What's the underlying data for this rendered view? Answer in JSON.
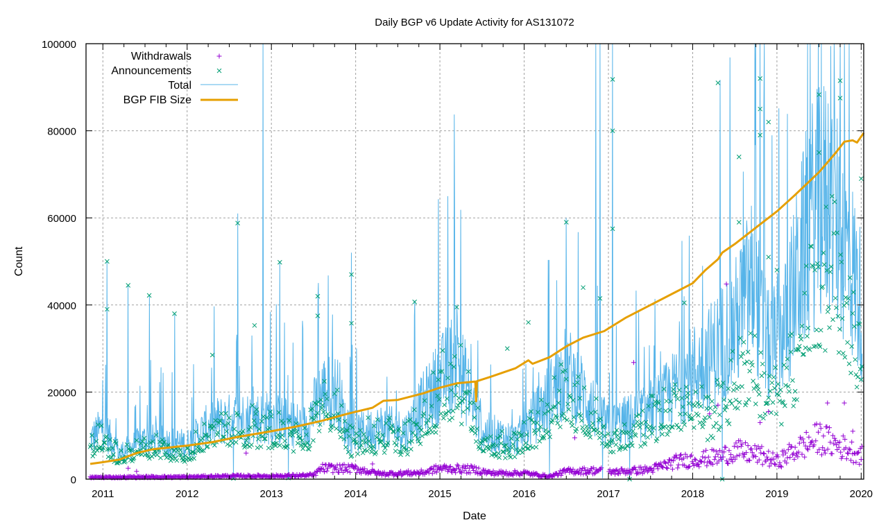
{
  "chart_data": {
    "type": "scatter",
    "title": "Daily BGP v6 Update Activity for AS131072",
    "xlabel": "Date",
    "ylabel": "Count",
    "xlim": [
      2010.8,
      2020.03
    ],
    "ylim": [
      0,
      100000
    ],
    "grid": true,
    "legend_placement": "top-left",
    "x_ticks": [
      "2011",
      "2012",
      "2013",
      "2014",
      "2015",
      "2016",
      "2017",
      "2018",
      "2019",
      "2020"
    ],
    "y_ticks": [
      "0",
      "20000",
      "40000",
      "60000",
      "80000",
      "100000"
    ],
    "series": [
      {
        "name": "Withdrawals",
        "style": "points-plus",
        "color": "#9400d3",
        "baseline": [
          [
            2010.85,
            400
          ],
          [
            2011.5,
            500
          ],
          [
            2012.0,
            500
          ],
          [
            2012.5,
            700
          ],
          [
            2013.0,
            700
          ],
          [
            2013.5,
            900
          ],
          [
            2013.6,
            2500
          ],
          [
            2014.0,
            2400
          ],
          [
            2014.3,
            1200
          ],
          [
            2014.8,
            1500
          ],
          [
            2015.0,
            2500
          ],
          [
            2015.4,
            2200
          ],
          [
            2015.6,
            1400
          ],
          [
            2016.0,
            1400
          ],
          [
            2016.3,
            600
          ],
          [
            2016.5,
            1800
          ],
          [
            2016.9,
            2000
          ],
          [
            2017.0,
            1600
          ],
          [
            2017.5,
            2200
          ],
          [
            2017.8,
            4000
          ],
          [
            2018.0,
            4500
          ],
          [
            2018.3,
            5000
          ],
          [
            2018.5,
            6500
          ],
          [
            2018.8,
            5500
          ],
          [
            2019.0,
            4000
          ],
          [
            2019.2,
            6500
          ],
          [
            2019.5,
            9500
          ],
          [
            2019.7,
            8000
          ],
          [
            2020.0,
            5500
          ]
        ],
        "outliers": [
          [
            2011.3,
            2500
          ],
          [
            2011.4,
            1800
          ],
          [
            2012.7,
            6000
          ],
          [
            2014.2,
            3500
          ],
          [
            2016.6,
            9500
          ],
          [
            2017.3,
            26800
          ],
          [
            2018.2,
            15000
          ],
          [
            2018.3,
            17000
          ],
          [
            2018.4,
            44800
          ],
          [
            2018.9,
            15500
          ],
          [
            2019.6,
            17500
          ],
          [
            2019.8,
            17500
          ],
          [
            2018.8,
            13000
          ],
          [
            2019.9,
            11000
          ]
        ]
      },
      {
        "name": "Announcements",
        "style": "points-x",
        "color": "#009e73",
        "baseline": [
          [
            2010.85,
            8000
          ],
          [
            2011.0,
            10000
          ],
          [
            2011.2,
            5000
          ],
          [
            2011.5,
            8000
          ],
          [
            2012.0,
            7000
          ],
          [
            2012.3,
            12000
          ],
          [
            2012.6,
            13000
          ],
          [
            2013.0,
            13000
          ],
          [
            2013.4,
            11000
          ],
          [
            2013.6,
            18000
          ],
          [
            2013.8,
            18000
          ],
          [
            2013.9,
            9000
          ],
          [
            2014.3,
            11000
          ],
          [
            2014.6,
            10000
          ],
          [
            2014.9,
            18000
          ],
          [
            2015.2,
            25000
          ],
          [
            2015.5,
            10000
          ],
          [
            2015.9,
            8000
          ],
          [
            2016.2,
            14000
          ],
          [
            2016.5,
            22000
          ],
          [
            2016.8,
            15000
          ],
          [
            2017.0,
            10000
          ],
          [
            2017.3,
            12000
          ],
          [
            2017.6,
            15000
          ],
          [
            2017.9,
            20000
          ],
          [
            2018.2,
            14000
          ],
          [
            2018.5,
            22000
          ],
          [
            2018.7,
            28000
          ],
          [
            2018.9,
            18000
          ],
          [
            2019.1,
            20000
          ],
          [
            2019.4,
            42000
          ],
          [
            2019.6,
            50000
          ],
          [
            2019.8,
            42000
          ],
          [
            2020.0,
            30000
          ]
        ],
        "outliers": [
          [
            2011.05,
            50000
          ],
          [
            2011.05,
            39000
          ],
          [
            2011.3,
            44500
          ],
          [
            2011.55,
            42200
          ],
          [
            2011.85,
            38000
          ],
          [
            2012.3,
            28500
          ],
          [
            2012.6,
            58800
          ],
          [
            2012.8,
            35300
          ],
          [
            2013.1,
            49800
          ],
          [
            2013.55,
            42000
          ],
          [
            2013.55,
            37500
          ],
          [
            2013.95,
            47000
          ],
          [
            2013.95,
            35800
          ],
          [
            2014.7,
            40700
          ],
          [
            2015.2,
            39500
          ],
          [
            2015.8,
            30000
          ],
          [
            2016.05,
            36000
          ],
          [
            2016.5,
            59000
          ],
          [
            2016.7,
            44000
          ],
          [
            2016.9,
            41500
          ],
          [
            2017.05,
            91800
          ],
          [
            2017.05,
            80000
          ],
          [
            2017.05,
            57500
          ],
          [
            2017.9,
            40500
          ],
          [
            2018.3,
            91000
          ],
          [
            2018.55,
            74000
          ],
          [
            2018.55,
            59000
          ],
          [
            2018.8,
            92000
          ],
          [
            2018.8,
            85000
          ],
          [
            2018.8,
            79000
          ],
          [
            2018.9,
            82000
          ],
          [
            2018.9,
            51000
          ],
          [
            2019.0,
            48000
          ],
          [
            2019.5,
            88300
          ],
          [
            2019.5,
            75000
          ],
          [
            2019.75,
            91500
          ],
          [
            2019.75,
            87500
          ],
          [
            2020.0,
            69000
          ]
        ]
      },
      {
        "name": "Total",
        "style": "line-thin",
        "color": "#56b4e9",
        "baseline": [
          [
            2010.85,
            9000
          ],
          [
            2011.0,
            12000
          ],
          [
            2011.2,
            6000
          ],
          [
            2011.5,
            9000
          ],
          [
            2012.0,
            8000
          ],
          [
            2012.3,
            13000
          ],
          [
            2012.6,
            14000
          ],
          [
            2013.0,
            14000
          ],
          [
            2013.4,
            12000
          ],
          [
            2013.6,
            20000
          ],
          [
            2013.8,
            20000
          ],
          [
            2013.9,
            10000
          ],
          [
            2014.3,
            12000
          ],
          [
            2014.6,
            11000
          ],
          [
            2014.9,
            20000
          ],
          [
            2015.2,
            28000
          ],
          [
            2015.5,
            11000
          ],
          [
            2015.9,
            9000
          ],
          [
            2016.2,
            16000
          ],
          [
            2016.5,
            25000
          ],
          [
            2016.8,
            17000
          ],
          [
            2017.0,
            12000
          ],
          [
            2017.3,
            14000
          ],
          [
            2017.6,
            17000
          ],
          [
            2017.9,
            23000
          ],
          [
            2018.2,
            28000
          ],
          [
            2018.5,
            35000
          ],
          [
            2018.7,
            45000
          ],
          [
            2018.9,
            30000
          ],
          [
            2019.1,
            35000
          ],
          [
            2019.4,
            60000
          ],
          [
            2019.6,
            65000
          ],
          [
            2019.8,
            55000
          ],
          [
            2020.0,
            40000
          ]
        ],
        "spikes": [
          [
            2011.05,
            50000
          ],
          [
            2011.3,
            44500
          ],
          [
            2011.55,
            42200
          ],
          [
            2011.85,
            38000
          ],
          [
            2012.6,
            61000
          ],
          [
            2012.9,
            100000
          ],
          [
            2013.1,
            50000
          ],
          [
            2013.55,
            42000
          ],
          [
            2013.95,
            52000
          ],
          [
            2014.7,
            41000
          ],
          [
            2015.2,
            40000
          ],
          [
            2016.5,
            60000
          ],
          [
            2016.85,
            100000
          ],
          [
            2016.9,
            100000
          ],
          [
            2017.05,
            100000
          ],
          [
            2017.9,
            42000
          ],
          [
            2018.35,
            100000
          ],
          [
            2018.75,
            100000
          ],
          [
            2018.8,
            100000
          ],
          [
            2018.85,
            100000
          ],
          [
            2019.5,
            90000
          ],
          [
            2019.75,
            100000
          ],
          [
            2019.8,
            100000
          ]
        ],
        "dips": [
          [
            2012.55,
            200
          ],
          [
            2013.2,
            300
          ],
          [
            2016.3,
            500
          ],
          [
            2016.93,
            200
          ],
          [
            2017.25,
            0
          ],
          [
            2018.35,
            0
          ]
        ]
      },
      {
        "name": "BGP FIB Size",
        "style": "line-thick",
        "color": "#e69f00",
        "points": [
          [
            2010.85,
            3500
          ],
          [
            2011.0,
            3900
          ],
          [
            2011.2,
            4500
          ],
          [
            2011.4,
            6000
          ],
          [
            2011.6,
            6900
          ],
          [
            2011.8,
            7300
          ],
          [
            2012.0,
            7700
          ],
          [
            2012.3,
            8500
          ],
          [
            2012.6,
            9700
          ],
          [
            2013.0,
            11000
          ],
          [
            2013.3,
            12100
          ],
          [
            2013.6,
            13400
          ],
          [
            2013.9,
            15000
          ],
          [
            2014.2,
            16400
          ],
          [
            2014.33,
            18000
          ],
          [
            2014.5,
            18200
          ],
          [
            2014.8,
            19700
          ],
          [
            2015.0,
            21000
          ],
          [
            2015.2,
            22000
          ],
          [
            2015.42,
            22400
          ],
          [
            2015.43,
            17900
          ],
          [
            2015.44,
            22500
          ],
          [
            2015.6,
            23500
          ],
          [
            2015.9,
            25500
          ],
          [
            2016.05,
            27300
          ],
          [
            2016.1,
            26500
          ],
          [
            2016.3,
            28000
          ],
          [
            2016.5,
            30500
          ],
          [
            2016.7,
            32500
          ],
          [
            2016.95,
            34000
          ],
          [
            2017.2,
            37000
          ],
          [
            2017.5,
            40000
          ],
          [
            2017.8,
            43000
          ],
          [
            2018.0,
            45000
          ],
          [
            2018.15,
            48000
          ],
          [
            2018.3,
            50500
          ],
          [
            2018.35,
            52000
          ],
          [
            2018.5,
            54000
          ],
          [
            2018.8,
            58500
          ],
          [
            2019.0,
            61500
          ],
          [
            2019.2,
            65000
          ],
          [
            2019.5,
            70500
          ],
          [
            2019.7,
            75000
          ],
          [
            2019.8,
            77500
          ],
          [
            2019.9,
            77800
          ],
          [
            2019.95,
            77300
          ],
          [
            2020.03,
            79500
          ]
        ]
      }
    ]
  }
}
